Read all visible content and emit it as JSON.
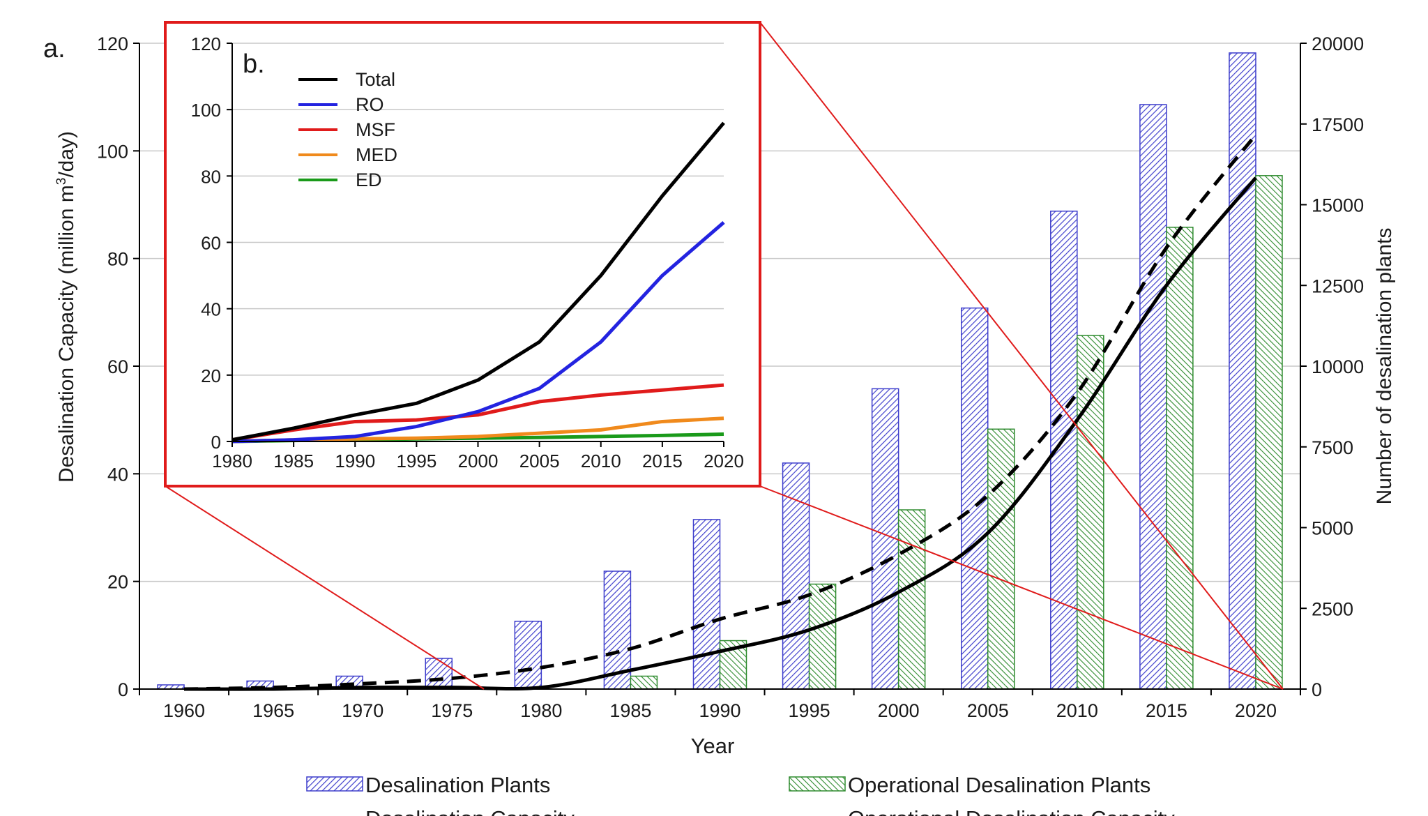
{
  "chart_data": [
    {
      "panel_label": "a.",
      "type": "bar",
      "xlabel": "Year",
      "ylabel_left_parts": [
        "Desalination Capacity (million m",
        "3",
        "/day)"
      ],
      "ylabel_right": "Number of desalination plants",
      "categories": [
        "1960",
        "1965",
        "1970",
        "1975",
        "1980",
        "1985",
        "1990",
        "1995",
        "2000",
        "2005",
        "2010",
        "2015",
        "2020"
      ],
      "ylim_left": [
        0,
        120
      ],
      "yticks_left": [
        0,
        20,
        40,
        60,
        80,
        100,
        120
      ],
      "ylim_right": [
        0,
        20000
      ],
      "yticks_right": [
        0,
        2500,
        5000,
        7500,
        10000,
        12500,
        15000,
        17500,
        20000
      ],
      "bar_series": [
        {
          "name": "Desalination Plants",
          "axis": "right",
          "color": "#3d3dcc",
          "pattern": "diagonal-hatch",
          "values": [
            130,
            250,
            400,
            950,
            2100,
            3650,
            5250,
            7000,
            9300,
            11800,
            14800,
            18100,
            19700
          ]
        },
        {
          "name": "Operational Desalination Plants",
          "axis": "right",
          "color": "#2e8b2e",
          "pattern": "diagonal-hatch",
          "values": [
            0,
            0,
            0,
            0,
            0,
            400,
            1500,
            3250,
            5550,
            8050,
            10950,
            14300,
            15900
          ]
        }
      ],
      "line_series": [
        {
          "name": "Desalination Capacity",
          "axis": "left",
          "style": "dashed",
          "color": "#000000",
          "x": [
            1960,
            1965,
            1970,
            1975,
            1980,
            1985,
            1990,
            1995,
            2000,
            2005,
            2010,
            2015,
            2020
          ],
          "values": [
            0,
            0.3,
            1,
            2,
            4,
            7.5,
            13,
            17.5,
            25,
            36,
            55,
            82,
            103
          ]
        },
        {
          "name": "Operational Desalination Capacity",
          "axis": "left",
          "style": "solid",
          "color": "#000000",
          "x": [
            1960,
            1965,
            1970,
            1975,
            1980,
            1985,
            1990,
            1995,
            2000,
            2005,
            2010,
            2015,
            2020
          ],
          "values": [
            0,
            0,
            0.3,
            0.3,
            0.3,
            3.5,
            7,
            11,
            18,
            29,
            50,
            75,
            95
          ]
        }
      ],
      "legend": [
        "Desalination Plants",
        "Operational Desalination Plants",
        "Desalination Capacity",
        "Operational Desalination Capacity"
      ],
      "legend_position": "bottom",
      "grid": true
    },
    {
      "panel_label": "b.",
      "type": "line",
      "inset": true,
      "x": [
        1980,
        1985,
        1990,
        1995,
        2000,
        2005,
        2010,
        2015,
        2020
      ],
      "xticks": [
        1980,
        1985,
        1990,
        1995,
        2000,
        2005,
        2010,
        2015,
        2020
      ],
      "ylim": [
        0,
        120
      ],
      "yticks": [
        0,
        20,
        40,
        60,
        80,
        100,
        120
      ],
      "series": [
        {
          "name": "Total",
          "color": "#000000",
          "values": [
            0.5,
            4,
            8,
            11.5,
            18.5,
            30,
            50,
            74,
            96
          ]
        },
        {
          "name": "RO",
          "color": "#2323e0",
          "values": [
            0,
            0.5,
            1.5,
            4.5,
            9,
            16,
            30,
            50,
            66
          ]
        },
        {
          "name": "MSF",
          "color": "#e01b1b",
          "values": [
            0.5,
            3.5,
            6,
            6.5,
            8,
            12,
            14,
            15.5,
            17
          ]
        },
        {
          "name": "MED",
          "color": "#f08a1c",
          "values": [
            0,
            0.5,
            0.8,
            1,
            1.5,
            2.5,
            3.5,
            6,
            7
          ]
        },
        {
          "name": "ED",
          "color": "#1a9a1a",
          "values": [
            0,
            0.3,
            0.5,
            0.8,
            1,
            1.2,
            1.5,
            1.8,
            2.2
          ]
        }
      ],
      "legend_position": "top-left",
      "grid": true
    }
  ]
}
